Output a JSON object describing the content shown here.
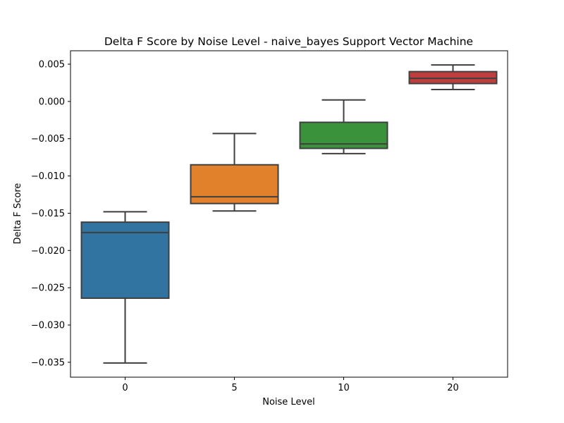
{
  "chart_data": {
    "type": "box",
    "title": "Delta F Score by Noise Level - naive_bayes Support Vector Machine",
    "xlabel": "Noise Level",
    "ylabel": "Delta F Score",
    "categories": [
      "0",
      "5",
      "10",
      "20"
    ],
    "ylim": [
      -0.037,
      0.0068
    ],
    "yticks": [
      0.005,
      0.0,
      -0.005,
      -0.01,
      -0.015,
      -0.02,
      -0.025,
      -0.03,
      -0.035
    ],
    "ytick_labels": [
      "0.005",
      "0.000",
      "−0.005",
      "−0.010",
      "−0.015",
      "−0.020",
      "−0.025",
      "−0.030",
      "−0.035"
    ],
    "grid": false,
    "boxes": [
      {
        "category": "0",
        "whisker_low": -0.0351,
        "q1": -0.0264,
        "median": -0.0176,
        "q3": -0.0162,
        "whisker_high": -0.0148,
        "color": "#3274a1"
      },
      {
        "category": "5",
        "whisker_low": -0.0147,
        "q1": -0.0137,
        "median": -0.0128,
        "q3": -0.0085,
        "whisker_high": -0.0043,
        "color": "#e1812c"
      },
      {
        "category": "10",
        "whisker_low": -0.007,
        "q1": -0.0063,
        "median": -0.0057,
        "q3": -0.0028,
        "whisker_high": 0.0002,
        "color": "#3a923a"
      },
      {
        "category": "20",
        "whisker_low": 0.0016,
        "q1": 0.0024,
        "median": 0.0031,
        "q3": 0.004,
        "whisker_high": 0.0049,
        "color": "#c03d3e"
      }
    ]
  }
}
